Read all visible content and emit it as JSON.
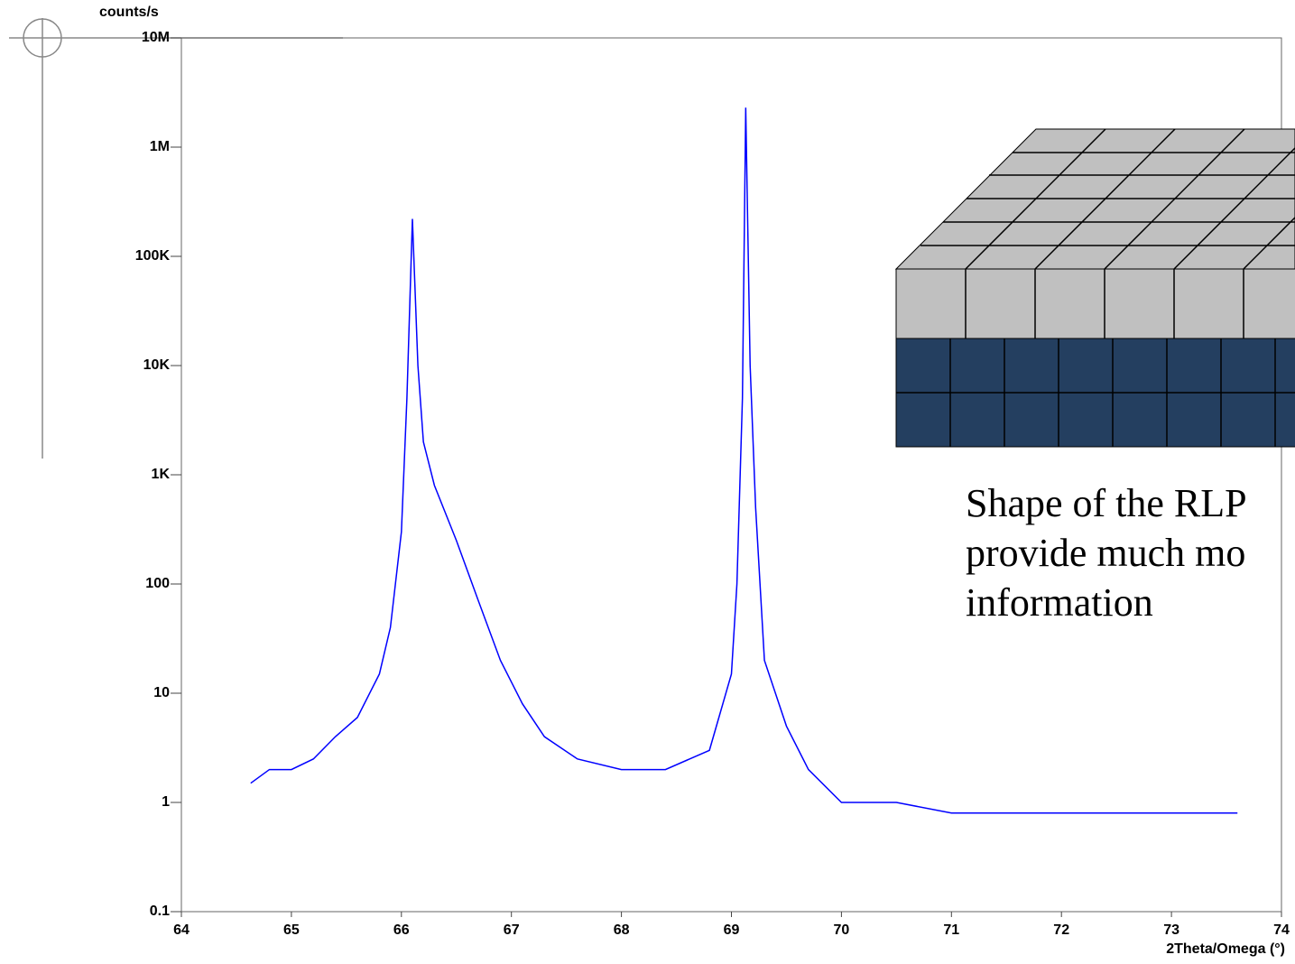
{
  "chart_data": {
    "type": "line",
    "log_y": true,
    "color": "#0000ff",
    "ylabel": "counts/s",
    "xlabel": "2Theta/Omega (°)",
    "x": [
      64.63,
      64.8,
      65.0,
      65.2,
      65.4,
      65.6,
      65.8,
      65.9,
      66.0,
      66.05,
      66.1,
      66.15,
      66.2,
      66.3,
      66.5,
      66.7,
      66.9,
      67.1,
      67.3,
      67.6,
      68.0,
      68.4,
      68.8,
      69.0,
      69.05,
      69.1,
      69.13,
      69.17,
      69.22,
      69.3,
      69.5,
      69.7,
      70.0,
      70.5,
      71.0,
      72.0,
      73.0,
      73.6
    ],
    "values": [
      1.5,
      2,
      2,
      2.5,
      4,
      6,
      15,
      40,
      300,
      5000,
      220000,
      10000,
      2000,
      800,
      250,
      70,
      20,
      8,
      4,
      2.5,
      2,
      2,
      3,
      15,
      100,
      5000,
      2300000,
      10000,
      500,
      20,
      5,
      2,
      1,
      1,
      0.8,
      0.8,
      0.8,
      0.8
    ],
    "xlim": [
      64,
      74
    ],
    "xticks": [
      64,
      65,
      66,
      67,
      68,
      69,
      70,
      71,
      72,
      73,
      74
    ],
    "ylim": [
      0.1,
      10000000
    ],
    "yticks": [
      0.1,
      1,
      10,
      100,
      {
        "value": 1000,
        "label": "1K"
      },
      {
        "value": 10000,
        "label": "10K"
      },
      {
        "value": 100000,
        "label": "100K"
      },
      {
        "value": 1000000,
        "label": "1M"
      },
      {
        "value": 10000000,
        "label": "10M"
      }
    ],
    "annotation": [
      "Shape of the RLP",
      "provide much mo",
      "information"
    ]
  }
}
